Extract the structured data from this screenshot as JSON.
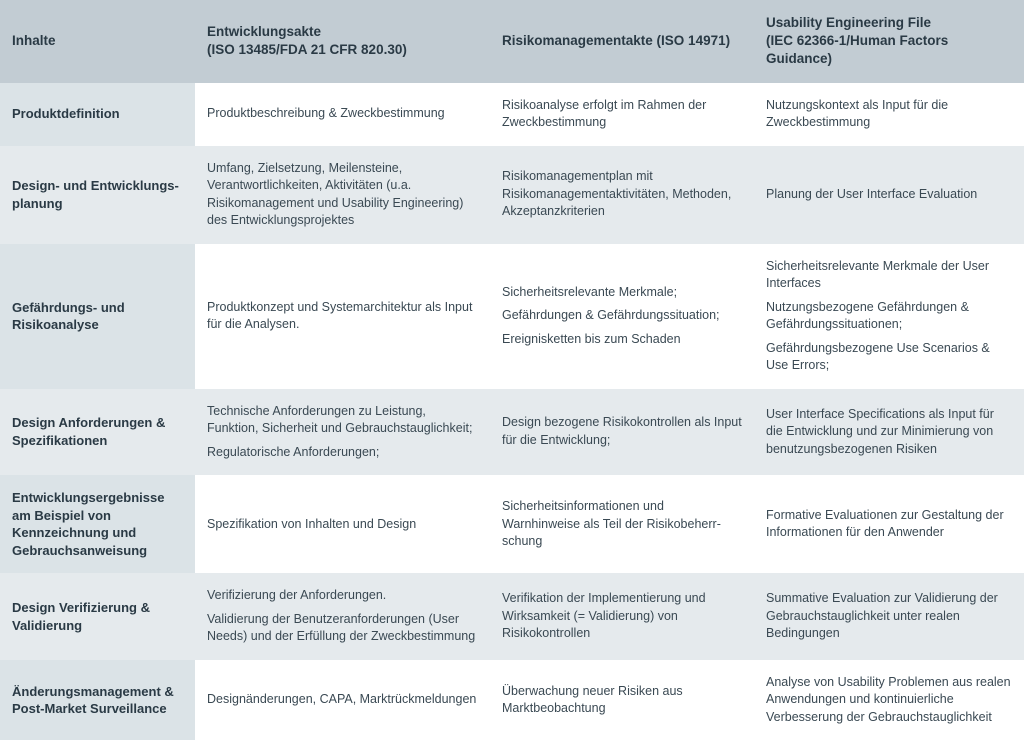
{
  "colors": {
    "header_bg": "#c2ccd3",
    "row_even_bg": "#e5eaed",
    "row_odd_bg": "#ffffff",
    "rowhead_tint": "#dbe3e7",
    "text_primary": "#2a3a45",
    "text_body": "#3a4953"
  },
  "columns": [
    {
      "label": "Inhalte"
    },
    {
      "label": "Entwicklungsakte\n(ISO 13485/FDA 21 CFR 820.30)"
    },
    {
      "label": "Risikomanagementakte (ISO 14971)"
    },
    {
      "label": "Usability Engineering File\n(IEC 62366-1/Human Factors Guidance)"
    }
  ],
  "rows": [
    {
      "head": "Produktdefinition",
      "cells": [
        [
          "Produktbeschreibung & Zweckbestimmung"
        ],
        [
          "Risikoanalyse erfolgt im Rahmen der Zweckbestimmung"
        ],
        [
          "Nutzungskontext als Input für die Zweckbestimmung"
        ]
      ]
    },
    {
      "head": "Design- und Entwicklungs­planung",
      "cells": [
        [
          "Umfang, Zielsetzung, Meilensteine, Verantwortlichkeiten, Aktivitäten (u.a. Risikomanagement und Usability Engineering) des Entwicklungsprojektes"
        ],
        [
          "Risikomanagementplan mit Risikomanagementaktivitäten, Methoden, Akzeptanzkriterien"
        ],
        [
          "Planung der User Interface Evaluation"
        ]
      ]
    },
    {
      "head": "Gefährdungs- und Risikoanalyse",
      "cells": [
        [
          "Produktkonzept und Systemarchitektur als Input für die Analysen."
        ],
        [
          "Sicherheitsrelevante Merkmale;",
          "Gefährdungen & Gefährdungssituation;",
          "Ereignisketten bis zum Schaden"
        ],
        [
          "Sicherheitsrelevante Merkmale der User Interfaces",
          "Nutzungsbezogene Gefährdungen & Gefährdungssituationen;",
          "Gefährdungsbezogene Use Scenarios & Use Errors;"
        ]
      ]
    },
    {
      "head": "Design Anforderungen & Spezifikationen",
      "cells": [
        [
          "Technische Anforderungen zu Leistung, Funktion, Sicherheit und Gebrauchstaug­lichkeit;",
          "Regulatorische Anforderungen;"
        ],
        [
          "Design bezogene Risikokontrollen als Input für die Entwicklung;"
        ],
        [
          "User Interface Specifications als Input für die Entwicklung und zur Minimierung von benutzungsbezogenen Risiken"
        ]
      ]
    },
    {
      "head": "Entwicklungsergebnisse am Beispiel von Kennzeichnung und Gebrauchsanweisung",
      "cells": [
        [
          "Spezifikation von Inhalten und Design"
        ],
        [
          "Sicherheitsinformationen und Warnhinweise als Teil der Risikobeherr­schung"
        ],
        [
          "Formative Evaluationen zur Gestaltung der Informationen für den Anwender"
        ]
      ]
    },
    {
      "head": "Design Verifizierung & Validierung",
      "cells": [
        [
          "Verifizierung der Anforderungen.",
          "Validierung der Benutzeranforderun­gen (User Needs) und der Erfüllung der Zweckbestimmung"
        ],
        [
          "Verifikation der Implementierung und Wirksamkeit (= Validierung) von Risikokontrollen"
        ],
        [
          "Summative Evaluation zur Validierung der Gebrauchstauglichkeit unter realen Bedingungen"
        ]
      ]
    },
    {
      "head": "Änderungsmanagement & Post-Market Surveillance",
      "cells": [
        [
          "Designänderungen, CAPA, Marktrückmel­dungen"
        ],
        [
          "Überwachung neuer Risiken aus Marktbeobachtung"
        ],
        [
          "Analyse von Usability Problemen aus realen Anwendungen und kontinuierliche Verbesserung der Gebrauchstauglichkeit"
        ]
      ]
    }
  ]
}
